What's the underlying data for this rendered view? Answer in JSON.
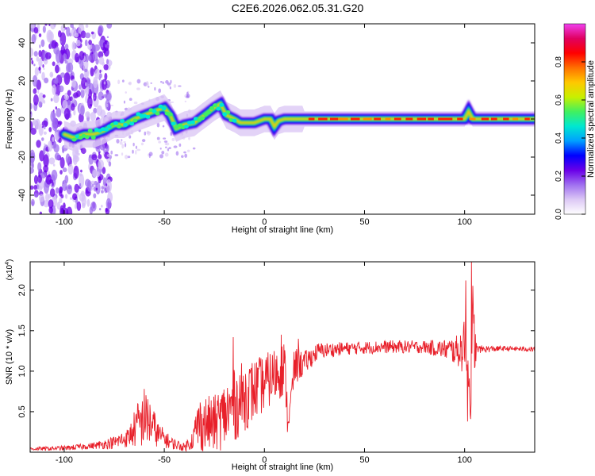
{
  "title": "C2E6.2026.062.05.31.G20",
  "chart_data": [
    {
      "type": "heatmap",
      "xlabel": "Height of straight line (km)",
      "ylabel": "Frequency (Hz)",
      "xlim": [
        -117,
        135
      ],
      "ylim": [
        -50,
        50
      ],
      "xticks": [
        -100,
        -50,
        0,
        50,
        100
      ],
      "yticks": [
        -40,
        -20,
        0,
        20,
        40
      ],
      "xtick_labels": [
        "-100",
        "-50",
        "0",
        "50",
        "100"
      ],
      "ytick_labels": [
        "-40",
        "-20",
        "0",
        "20",
        "40"
      ],
      "colorbar": {
        "label": "Normalized spectral amplitude",
        "range": [
          0,
          1
        ],
        "ticks": [
          0.0,
          0.2,
          0.4,
          0.6,
          0.8
        ],
        "tick_labels": [
          "0.0",
          "0.2",
          "0.4",
          "0.6",
          "0.8"
        ],
        "colors": [
          "#ffffff",
          "#dcc8f5",
          "#a070f0",
          "#6a00e8",
          "#0000ff",
          "#00a0ff",
          "#00e8d0",
          "#40f060",
          "#c8f000",
          "#ffc800",
          "#ff7000",
          "#ff0000",
          "#e00060",
          "#f040f0"
        ]
      },
      "ridge_track": [
        {
          "x": -116,
          "f": -38
        },
        {
          "x": -112,
          "f": -12
        },
        {
          "x": -108,
          "f": 8
        },
        {
          "x": -104,
          "f": -4
        },
        {
          "x": -100,
          "f": -8
        },
        {
          "x": -95,
          "f": -10
        },
        {
          "x": -90,
          "f": -8
        },
        {
          "x": -85,
          "f": -8
        },
        {
          "x": -80,
          "f": -6
        },
        {
          "x": -75,
          "f": -3
        },
        {
          "x": -70,
          "f": -3
        },
        {
          "x": -65,
          "f": 0
        },
        {
          "x": -60,
          "f": 2
        },
        {
          "x": -55,
          "f": 4
        },
        {
          "x": -50,
          "f": 6
        },
        {
          "x": -47,
          "f": 2
        },
        {
          "x": -44,
          "f": -5
        },
        {
          "x": -40,
          "f": -3
        },
        {
          "x": -35,
          "f": -2
        },
        {
          "x": -30,
          "f": 2
        },
        {
          "x": -25,
          "f": 6
        },
        {
          "x": -22,
          "f": 8
        },
        {
          "x": -19,
          "f": 2
        },
        {
          "x": -15,
          "f": 0
        },
        {
          "x": -12,
          "f": -2
        },
        {
          "x": -5,
          "f": -2
        },
        {
          "x": 0,
          "f": 0
        },
        {
          "x": 3,
          "f": 0
        },
        {
          "x": 5,
          "f": -4
        },
        {
          "x": 7,
          "f": -1
        },
        {
          "x": 10,
          "f": 0
        },
        {
          "x": 20,
          "f": 0
        },
        {
          "x": 100,
          "f": 0
        },
        {
          "x": 102,
          "f": 4
        },
        {
          "x": 104,
          "f": 0
        },
        {
          "x": 135,
          "f": 0
        }
      ]
    },
    {
      "type": "line",
      "xlabel": "Height of straight line (km)",
      "ylabel": "SNR (10 * v/v)",
      "multiplier": "(x10^4)",
      "multiplier_base": "(x10",
      "multiplier_exp": "4",
      "xlim": [
        -117,
        135
      ],
      "ylim": [
        0,
        2.35
      ],
      "xticks": [
        -100,
        -50,
        0,
        50,
        100
      ],
      "yticks": [
        0.5,
        1.0,
        1.5,
        2.0
      ],
      "xtick_labels": [
        "-100",
        "-50",
        "0",
        "50",
        "100"
      ],
      "ytick_labels": [
        "0.5",
        "1.0",
        "1.5",
        "2.0"
      ],
      "series": [
        {
          "name": "SNR",
          "color": "#e8202a",
          "envelope": [
            {
              "x": -117,
              "base": 0.04,
              "amp": 0.02
            },
            {
              "x": -100,
              "base": 0.05,
              "amp": 0.03
            },
            {
              "x": -85,
              "base": 0.08,
              "amp": 0.04
            },
            {
              "x": -75,
              "base": 0.12,
              "amp": 0.08
            },
            {
              "x": -68,
              "base": 0.18,
              "amp": 0.12
            },
            {
              "x": -63,
              "base": 0.35,
              "amp": 0.3
            },
            {
              "x": -58,
              "base": 0.4,
              "amp": 0.35
            },
            {
              "x": -53,
              "base": 0.22,
              "amp": 0.15
            },
            {
              "x": -47,
              "base": 0.12,
              "amp": 0.08
            },
            {
              "x": -40,
              "base": 0.06,
              "amp": 0.05
            },
            {
              "x": -36,
              "base": 0.15,
              "amp": 0.12
            },
            {
              "x": -33,
              "base": 0.35,
              "amp": 0.35
            },
            {
              "x": -25,
              "base": 0.35,
              "amp": 0.35
            },
            {
              "x": -18,
              "base": 0.5,
              "amp": 0.45
            },
            {
              "x": -12,
              "base": 0.65,
              "amp": 0.45
            },
            {
              "x": -6,
              "base": 0.75,
              "amp": 0.4
            },
            {
              "x": 0,
              "base": 0.85,
              "amp": 0.35
            },
            {
              "x": 5,
              "base": 0.95,
              "amp": 0.35
            },
            {
              "x": 10,
              "base": 1.05,
              "amp": 0.35
            },
            {
              "x": 12,
              "base": 0.35,
              "amp": 0.1
            },
            {
              "x": 15,
              "base": 1.05,
              "amp": 0.25
            },
            {
              "x": 20,
              "base": 1.1,
              "amp": 0.15
            },
            {
              "x": 27,
              "base": 1.25,
              "amp": 0.1
            },
            {
              "x": 40,
              "base": 1.28,
              "amp": 0.08
            },
            {
              "x": 60,
              "base": 1.3,
              "amp": 0.08
            },
            {
              "x": 80,
              "base": 1.3,
              "amp": 0.08
            },
            {
              "x": 90,
              "base": 1.27,
              "amp": 0.12
            },
            {
              "x": 97,
              "base": 1.25,
              "amp": 0.2
            },
            {
              "x": 101,
              "base": 1.3,
              "amp": 0.4
            },
            {
              "x": 103,
              "base": 0.55,
              "amp": 0.15
            },
            {
              "x": 104,
              "base": 1.4,
              "amp": 0.8
            },
            {
              "x": 106,
              "base": 1.27,
              "amp": 0.05
            },
            {
              "x": 120,
              "base": 1.28,
              "amp": 0.03
            },
            {
              "x": 135,
              "base": 1.27,
              "amp": 0.03
            }
          ],
          "peaks": [
            {
              "x": -15.5,
              "y": 1.42
            },
            {
              "x": 8.5,
              "y": 1.45
            },
            {
              "x": 11.5,
              "y": 0.25
            },
            {
              "x": 17,
              "y": 1.4
            },
            {
              "x": 99.5,
              "y": 1.55
            },
            {
              "x": 100.5,
              "y": 2.12
            },
            {
              "x": 101.5,
              "y": 0.38
            },
            {
              "x": 103.5,
              "y": 2.37
            },
            {
              "x": -60,
              "y": 0.78
            }
          ]
        }
      ]
    }
  ]
}
